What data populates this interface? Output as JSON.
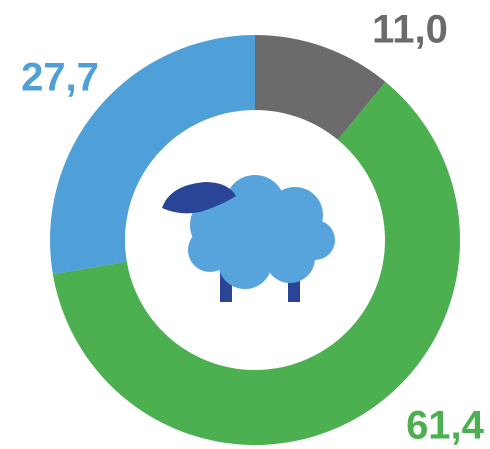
{
  "chart_data": {
    "type": "pie",
    "values": [
      11.0,
      61.4,
      27.7
    ],
    "value_labels": [
      "11,0",
      "61,4",
      "27,7"
    ],
    "colors": [
      "#6b6b6b",
      "#4caf50",
      "#4f9fd8"
    ]
  }
}
